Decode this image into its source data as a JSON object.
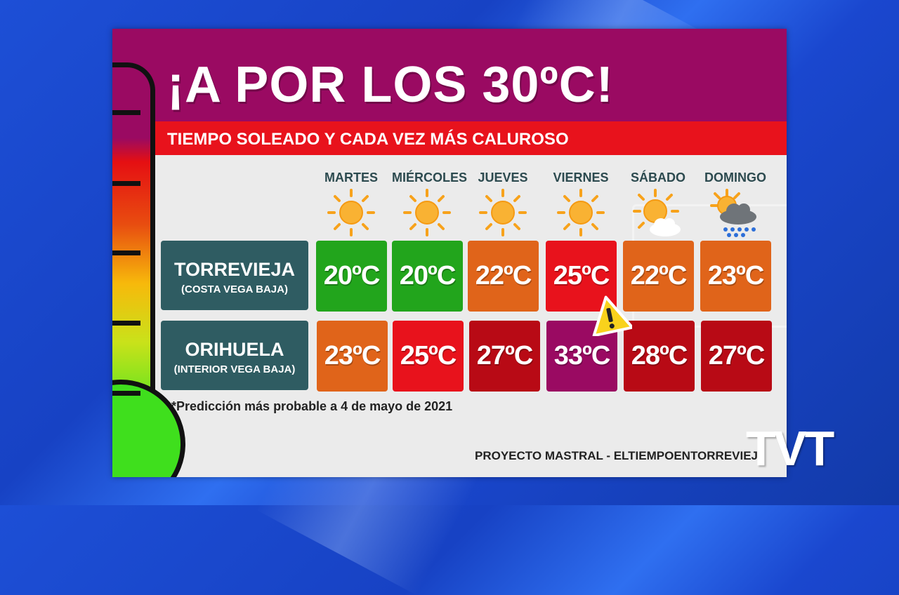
{
  "title": "¡A POR LOS 30ºC!",
  "subtitle": "TIEMPO SOLEADO Y CADA VEZ MÁS CALUROSO",
  "days": [
    {
      "label": "MARTES",
      "icon": "sun-icon"
    },
    {
      "label": "MIÉRCOLES",
      "icon": "sun-icon"
    },
    {
      "label": "JUEVES",
      "icon": "sun-icon"
    },
    {
      "label": "VIERNES",
      "icon": "sun-icon"
    },
    {
      "label": "SÁBADO",
      "icon": "sun-cloud-icon"
    },
    {
      "label": "DOMINGO",
      "icon": "sun-rain-cloud-icon"
    }
  ],
  "cities": [
    {
      "name": "TORREVIEJA",
      "sub": "(COSTA VEGA BAJA)",
      "temps": [
        {
          "value": "20ºC",
          "color": "#22a51c"
        },
        {
          "value": "20ºC",
          "color": "#22a51c"
        },
        {
          "value": "22ºC",
          "color": "#e0641a"
        },
        {
          "value": "25ºC",
          "color": "#e8121c"
        },
        {
          "value": "22ºC",
          "color": "#e0641a"
        },
        {
          "value": "23ºC",
          "color": "#e0641a"
        }
      ]
    },
    {
      "name": "ORIHUELA",
      "sub": "(INTERIOR VEGA BAJA)",
      "temps": [
        {
          "value": "23ºC",
          "color": "#e0641a"
        },
        {
          "value": "25ºC",
          "color": "#e8121c"
        },
        {
          "value": "27ºC",
          "color": "#b80a15"
        },
        {
          "value": "33ºC",
          "color": "#9a0a62"
        },
        {
          "value": "28ºC",
          "color": "#b80a15"
        },
        {
          "value": "27ºC",
          "color": "#b80a15"
        }
      ]
    }
  ],
  "note": "*Predicción más probable a 4 de mayo de 2021",
  "credit": "PROYECTO MASTRAL - ELTIEMPOENTORREVIEJA.E",
  "logo": "TVT",
  "colors": {
    "header": "#9a0a62",
    "subbar": "#e8121c",
    "city_card": "#2f5c62",
    "background": "#1d4fd6"
  }
}
